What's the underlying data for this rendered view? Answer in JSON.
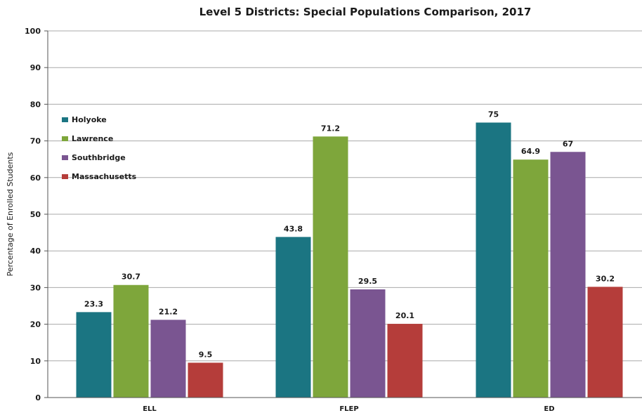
{
  "chart_data": {
    "type": "bar",
    "title": "Level 5 Districts: Special Populations Comparison, 2017",
    "xlabel": "",
    "ylabel": "Percentage of Enrolled Students",
    "ylim": [
      0,
      100
    ],
    "yticks": [
      0,
      10,
      20,
      30,
      40,
      50,
      60,
      70,
      80,
      90,
      100
    ],
    "grid": true,
    "legend_position": "top-left",
    "categories": [
      "ELL",
      "FLEP",
      "ED"
    ],
    "series": [
      {
        "name": "Holyoke",
        "color": "#1b7582",
        "values": [
          23.3,
          43.8,
          75
        ]
      },
      {
        "name": "Lawrence",
        "color": "#7ea63b",
        "values": [
          30.7,
          71.2,
          64.9
        ]
      },
      {
        "name": "Southbridge",
        "color": "#7a5591",
        "values": [
          21.2,
          29.5,
          67
        ]
      },
      {
        "name": "Massachusetts",
        "color": "#b53d3a",
        "values": [
          9.5,
          20.1,
          30.2
        ]
      }
    ],
    "data_labels": [
      [
        "23.3",
        "43.8",
        "75"
      ],
      [
        "30.7",
        "71.2",
        "64.9"
      ],
      [
        "21.2",
        "29.5",
        "67"
      ],
      [
        "9.5",
        "20.1",
        "30.2"
      ]
    ]
  }
}
